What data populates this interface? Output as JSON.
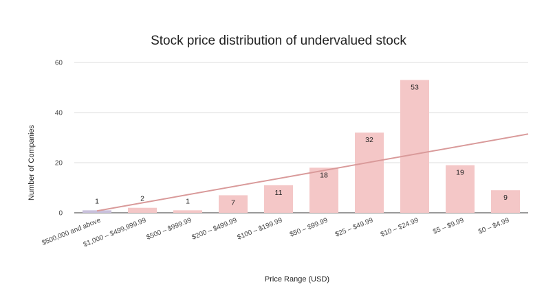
{
  "chart_data": {
    "type": "bar",
    "title": "Stock price distribution of undervalued stock",
    "xlabel": "Price Range (USD)",
    "ylabel": "Number of Companies",
    "categories": [
      "$500,000 and above",
      "$1,000 – $499,999.99",
      "$500 – $999.99",
      "$200 – $499.99",
      "$100 – $199.99",
      "$50 – $99.99",
      "$25 – $49.99",
      "$10 – $24.99",
      "$5 – $9.99",
      "$0 – $4.99"
    ],
    "values": [
      1,
      2,
      1,
      7,
      11,
      18,
      32,
      53,
      19,
      9
    ],
    "data_labels": [
      "1",
      "2",
      "1",
      "7",
      "11",
      "18",
      "32",
      "53",
      "19",
      "9"
    ],
    "ylim": [
      0,
      60
    ],
    "yticks": [
      "0",
      "20",
      "40",
      "60"
    ],
    "grid": true,
    "legend": "none",
    "trendline": {
      "type": "linear",
      "color": "#d99a9a"
    },
    "colors": {
      "bar": "#f4c7c7",
      "first_bar": "#c9c1dc",
      "grid": "#dddddd",
      "axis": "#333333"
    }
  }
}
